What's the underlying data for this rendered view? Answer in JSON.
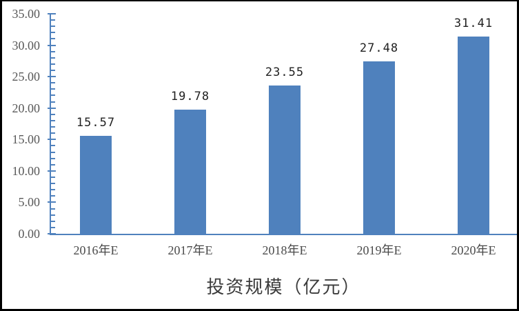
{
  "chart_data": {
    "type": "bar",
    "title": "投资规模（亿元）",
    "categories": [
      "2016年E",
      "2017年E",
      "2018年E",
      "2019年E",
      "2020年E"
    ],
    "values": [
      15.57,
      19.78,
      23.55,
      27.48,
      31.41
    ],
    "value_labels": [
      "15.57",
      "19.78",
      "23.55",
      "27.48",
      "31.41"
    ],
    "ylim": [
      0,
      35
    ],
    "y_major_step": 5,
    "y_minor_step": 1,
    "y_tick_labels": [
      "0.00",
      "5.00",
      "10.00",
      "15.00",
      "20.00",
      "25.00",
      "30.00",
      "35.00"
    ],
    "grid": false,
    "legend_position": "none",
    "bar_color": "#4F81BD",
    "axis_color": "#4F81BD",
    "y_tick_label_color": "#595959",
    "x_tick_label_color": "#4a4a4a",
    "data_label_color": "#1f1f1f"
  }
}
